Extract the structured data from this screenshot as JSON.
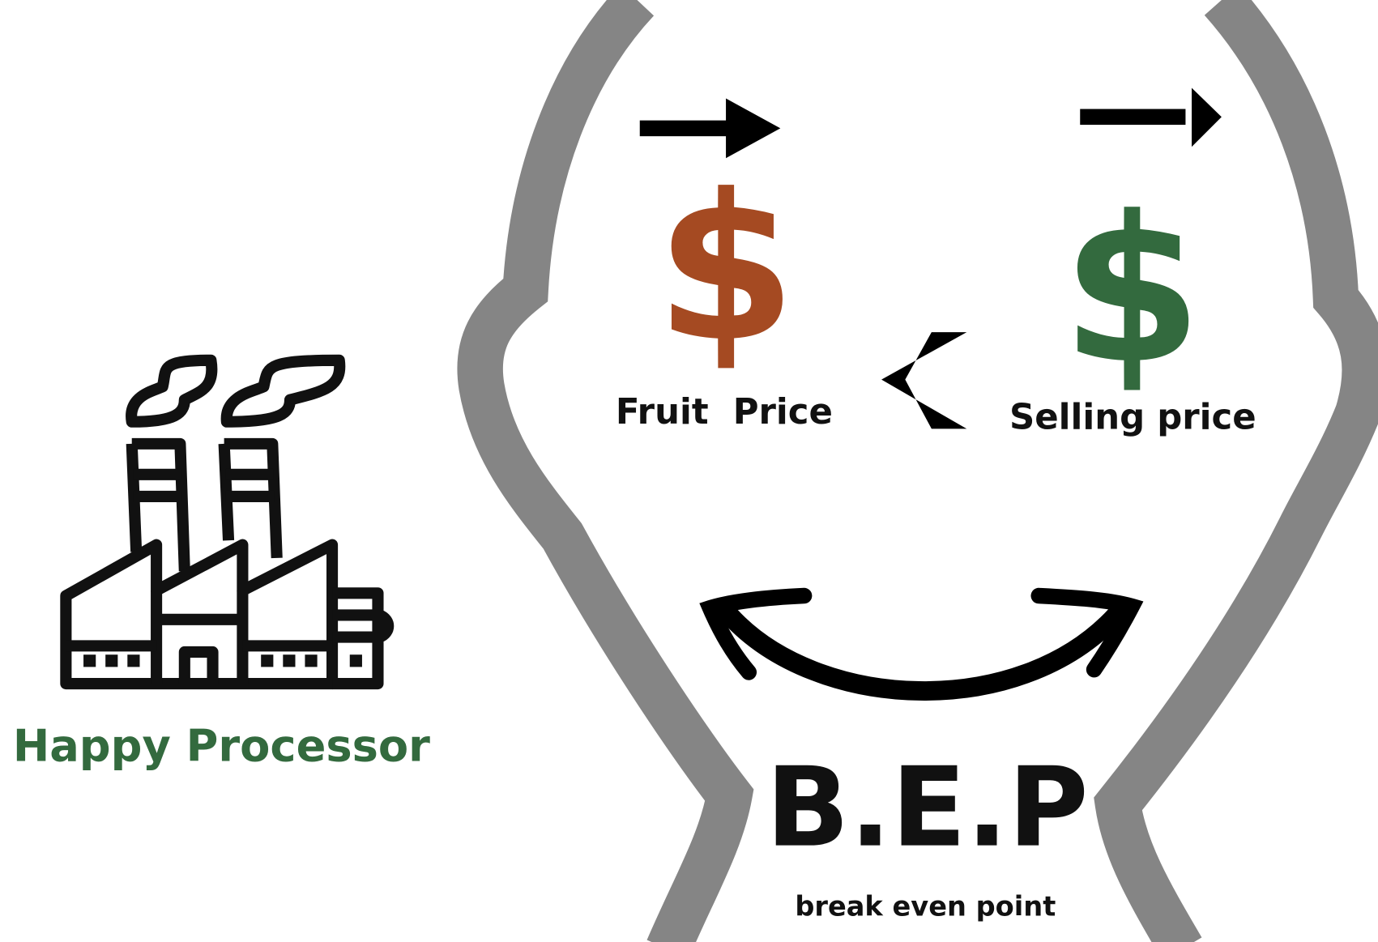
{
  "factory": {
    "label": "Happy Processor"
  },
  "prices": [
    {
      "symbol": "$",
      "label": "Fruit  Price"
    },
    {
      "symbol": "$",
      "label": "Selling price"
    }
  ],
  "bep": {
    "title": "B.E.P",
    "subtitle": "break even point"
  }
}
